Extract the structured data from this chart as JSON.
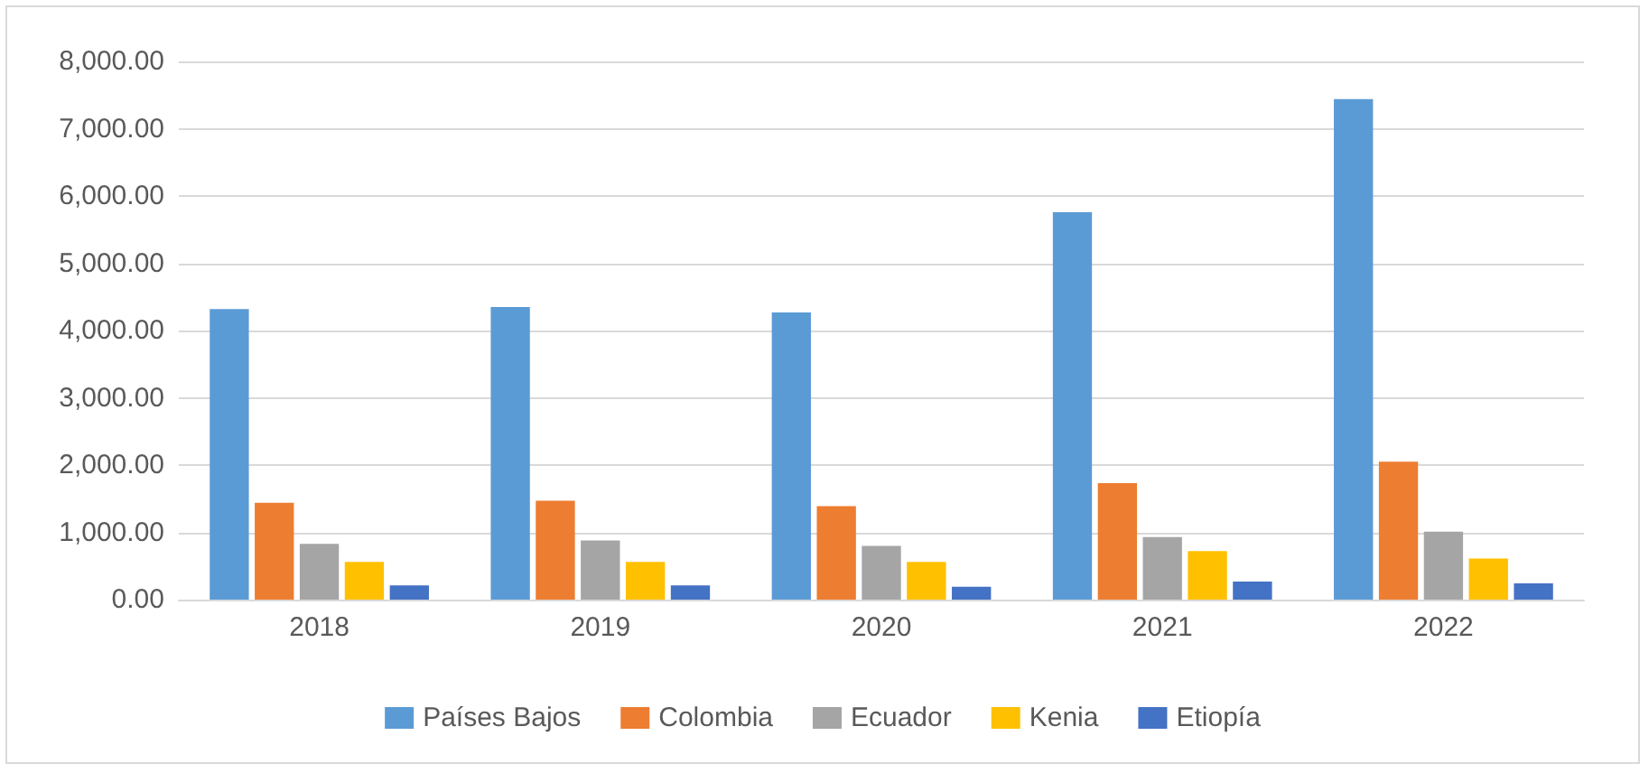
{
  "chart_data": {
    "type": "bar",
    "categories": [
      "2018",
      "2019",
      "2020",
      "2021",
      "2022"
    ],
    "series": [
      {
        "name": "Países Bajos",
        "color": "#5b9bd5",
        "values": [
          4320,
          4350,
          4270,
          5760,
          7440
        ]
      },
      {
        "name": "Colombia",
        "color": "#ed7d31",
        "values": [
          1440,
          1470,
          1390,
          1730,
          2050
        ]
      },
      {
        "name": "Ecuador",
        "color": "#a5a5a5",
        "values": [
          830,
          880,
          800,
          930,
          1010
        ]
      },
      {
        "name": "Kenia",
        "color": "#ffc000",
        "values": [
          560,
          560,
          560,
          720,
          610
        ]
      },
      {
        "name": "Etiopía",
        "color": "#4472c4",
        "values": [
          210,
          210,
          190,
          270,
          240
        ]
      }
    ],
    "ylim": [
      0,
      8000
    ],
    "yticks": [
      {
        "value": 0,
        "label": "0.00"
      },
      {
        "value": 1000,
        "label": "1,000.00"
      },
      {
        "value": 2000,
        "label": "2,000.00"
      },
      {
        "value": 3000,
        "label": "3,000.00"
      },
      {
        "value": 4000,
        "label": "4,000.00"
      },
      {
        "value": 5000,
        "label": "5,000.00"
      },
      {
        "value": 6000,
        "label": "6,000.00"
      },
      {
        "value": 7000,
        "label": "7,000.00"
      },
      {
        "value": 8000,
        "label": "8,000.00"
      }
    ],
    "grid": "y",
    "legend": "bottom"
  }
}
